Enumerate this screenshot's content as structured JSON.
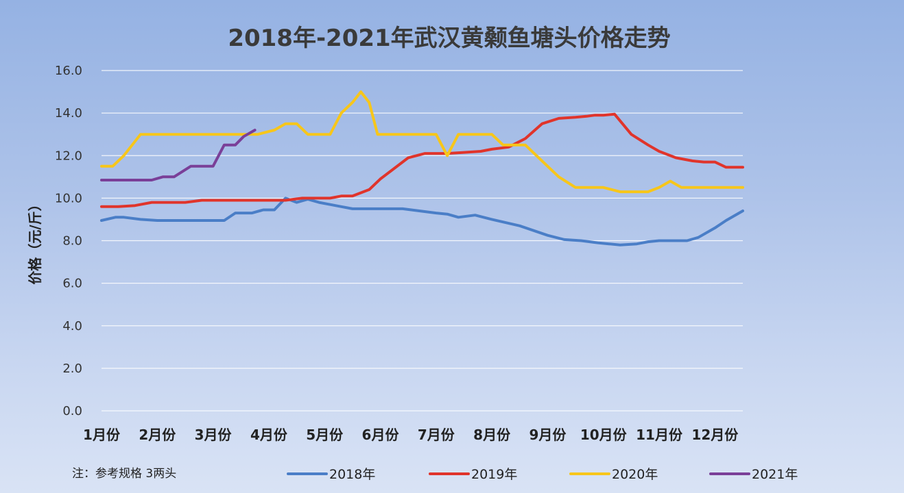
{
  "chart_data": {
    "type": "line",
    "title": "2018年-2021年武汉黄颡鱼塘头价格走势",
    "ylabel": "价格（元/斤）",
    "xlabel": "",
    "ylim": [
      0,
      16
    ],
    "yticks": [
      "0.0",
      "2.0",
      "4.0",
      "6.0",
      "8.0",
      "10.0",
      "12.0",
      "14.0",
      "16.0"
    ],
    "categories": [
      "1月份",
      "2月份",
      "3月份",
      "4月份",
      "5月份",
      "6月份",
      "7月份",
      "8月份",
      "9月份",
      "10月份",
      "11月份",
      "12月份"
    ],
    "grid": true,
    "legend_position": "bottom",
    "x_range": [
      1,
      12.5
    ],
    "series": [
      {
        "name": "2018年",
        "color": "#4a7ec7",
        "x": [
          1.0,
          1.25,
          1.4,
          1.7,
          2.0,
          2.5,
          3.0,
          3.2,
          3.4,
          3.7,
          3.9,
          4.1,
          4.3,
          4.5,
          4.7,
          4.9,
          5.1,
          5.3,
          5.5,
          5.8,
          6.1,
          6.4,
          6.7,
          7.0,
          7.2,
          7.4,
          7.7,
          8.0,
          8.5,
          9.0,
          9.3,
          9.6,
          9.9,
          10.1,
          10.3,
          10.6,
          10.8,
          11.0,
          11.3,
          11.5,
          11.7,
          12.0,
          12.2,
          12.5
        ],
        "values": [
          8.95,
          9.1,
          9.1,
          9.0,
          8.95,
          8.95,
          8.95,
          8.95,
          9.3,
          9.3,
          9.45,
          9.45,
          10.0,
          9.8,
          9.95,
          9.8,
          9.7,
          9.6,
          9.5,
          9.5,
          9.5,
          9.5,
          9.4,
          9.3,
          9.25,
          9.1,
          9.2,
          9.0,
          8.7,
          8.25,
          8.05,
          8.0,
          7.9,
          7.85,
          7.8,
          7.85,
          7.95,
          8.0,
          8.0,
          8.0,
          8.15,
          8.6,
          8.95,
          9.4
        ]
      },
      {
        "name": "2019年",
        "color": "#e0342b",
        "x": [
          1.0,
          1.3,
          1.6,
          1.9,
          2.2,
          2.5,
          2.8,
          3.2,
          3.6,
          4.0,
          4.3,
          4.6,
          4.9,
          5.1,
          5.3,
          5.5,
          5.8,
          6.0,
          6.2,
          6.5,
          6.8,
          7.0,
          7.2,
          7.5,
          7.8,
          8.0,
          8.3,
          8.6,
          8.9,
          9.2,
          9.5,
          9.7,
          9.85,
          10.0,
          10.2,
          10.5,
          10.8,
          11.0,
          11.3,
          11.6,
          11.8,
          12.0,
          12.2,
          12.5
        ],
        "values": [
          9.6,
          9.6,
          9.65,
          9.8,
          9.8,
          9.8,
          9.9,
          9.9,
          9.9,
          9.9,
          9.9,
          10.0,
          10.0,
          10.0,
          10.1,
          10.1,
          10.4,
          10.9,
          11.3,
          11.9,
          12.1,
          12.1,
          12.1,
          12.15,
          12.2,
          12.3,
          12.4,
          12.8,
          13.5,
          13.75,
          13.8,
          13.85,
          13.9,
          13.9,
          13.95,
          13.0,
          12.5,
          12.2,
          11.9,
          11.75,
          11.7,
          11.7,
          11.45,
          11.45
        ]
      },
      {
        "name": "2020年",
        "color": "#f7c61a",
        "x": [
          1.0,
          1.2,
          1.4,
          1.7,
          2.0,
          2.5,
          3.0,
          3.5,
          3.8,
          4.1,
          4.3,
          4.5,
          4.7,
          4.9,
          5.1,
          5.3,
          5.5,
          5.65,
          5.8,
          5.95,
          6.15,
          6.3,
          6.5,
          6.7,
          7.0,
          7.2,
          7.4,
          7.6,
          7.8,
          8.0,
          8.2,
          8.4,
          8.6,
          8.8,
          9.0,
          9.2,
          9.5,
          9.8,
          10.0,
          10.3,
          10.6,
          10.8,
          11.0,
          11.2,
          11.4,
          11.6,
          11.8,
          12.0,
          12.2,
          12.5
        ],
        "values": [
          11.5,
          11.5,
          12.0,
          13.0,
          13.0,
          13.0,
          13.0,
          13.0,
          13.0,
          13.2,
          13.5,
          13.5,
          13.0,
          13.0,
          13.0,
          14.0,
          14.5,
          15.0,
          14.5,
          13.0,
          13.0,
          13.0,
          13.0,
          13.0,
          13.0,
          12.0,
          13.0,
          13.0,
          13.0,
          13.0,
          12.5,
          12.5,
          12.5,
          12.0,
          11.5,
          11.0,
          10.5,
          10.5,
          10.5,
          10.3,
          10.3,
          10.3,
          10.5,
          10.8,
          10.5,
          10.5,
          10.5,
          10.5,
          10.5,
          10.5
        ]
      },
      {
        "name": "2021年",
        "color": "#7a3f98",
        "x": [
          1.0,
          1.4,
          1.7,
          1.9,
          2.1,
          2.3,
          2.6,
          2.8,
          3.0,
          3.2,
          3.4,
          3.55,
          3.75
        ],
        "values": [
          10.85,
          10.85,
          10.85,
          10.85,
          11.0,
          11.0,
          11.5,
          11.5,
          11.5,
          12.5,
          12.5,
          12.9,
          13.2
        ]
      }
    ]
  },
  "note": "注：参考规格  3两头"
}
